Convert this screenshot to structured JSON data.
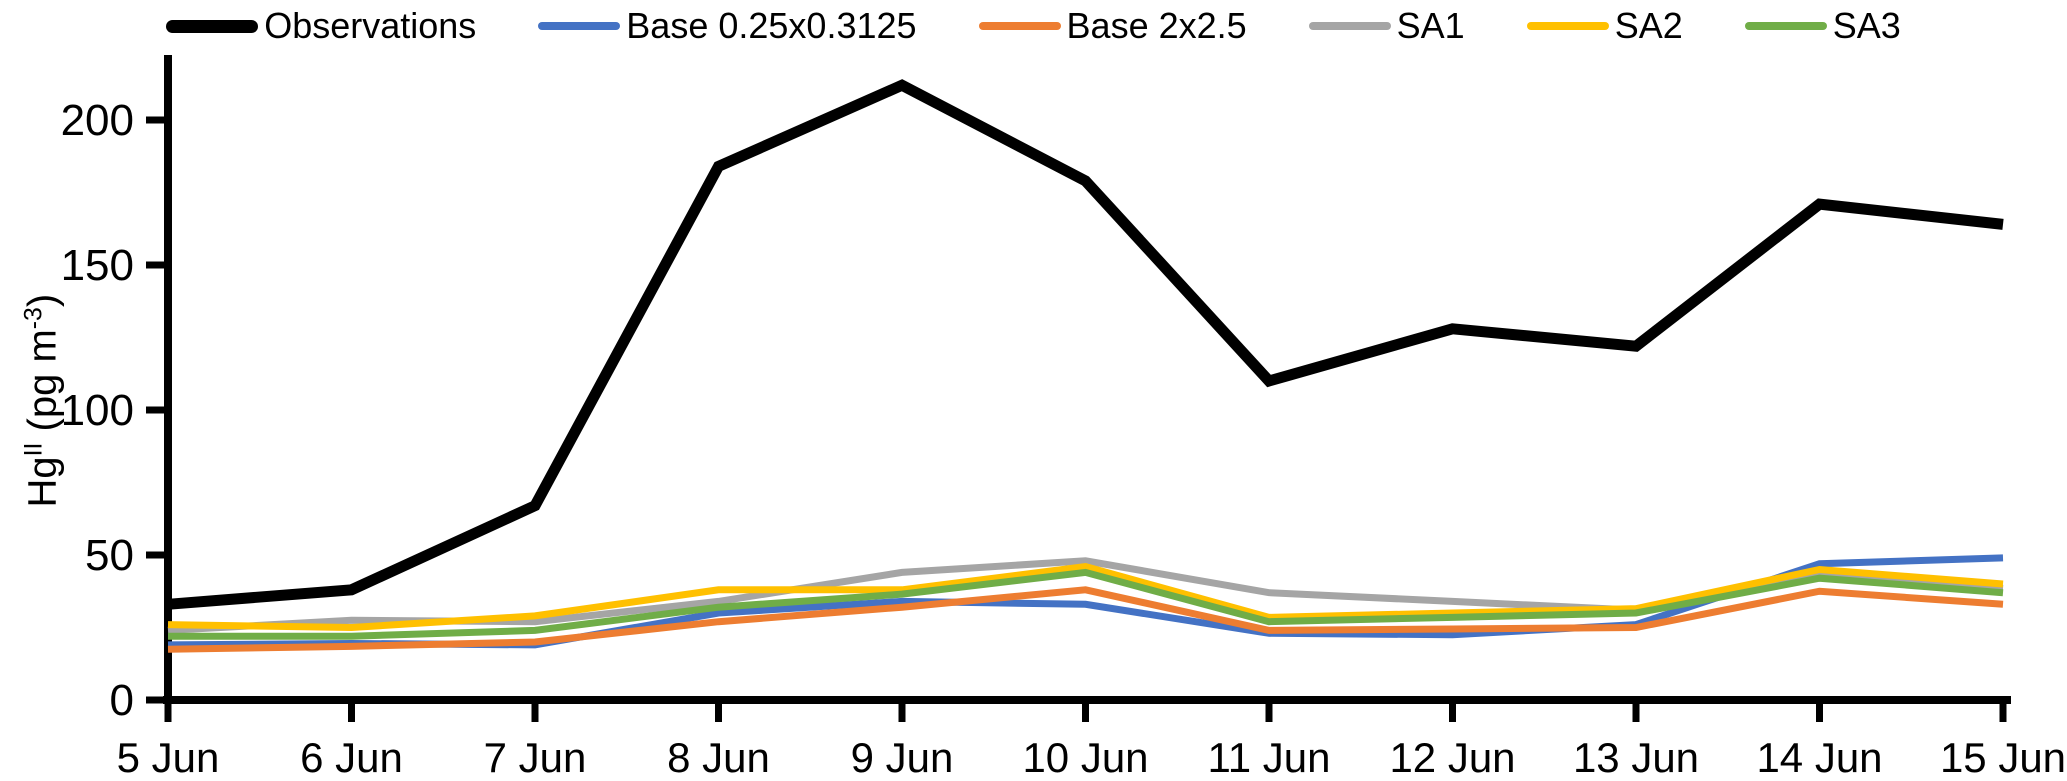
{
  "axis": {
    "ylabel": {
      "base": "Hg",
      "sup1": "II",
      "mid": " (pg m",
      "sup2": "-3",
      "tail": ")"
    }
  },
  "chart_data": {
    "type": "line",
    "title": "",
    "xlabel": "",
    "ylabel": "Hg^II (pg m^-3)",
    "ylim": [
      0,
      220
    ],
    "yticks": [
      0,
      50,
      100,
      150,
      200
    ],
    "grid": false,
    "legend_position": "top",
    "categories": [
      "5 Jun",
      "6 Jun",
      "7 Jun",
      "8 Jun",
      "9 Jun",
      "10 Jun",
      "11 Jun",
      "12 Jun",
      "13 Jun",
      "14 Jun",
      "15 Jun"
    ],
    "series": [
      {
        "name": "Observations",
        "color": "#000000",
        "width": 11,
        "values": [
          33,
          38,
          67,
          184,
          212,
          179,
          110,
          128,
          122,
          171,
          164
        ]
      },
      {
        "name": "Base 0.25x0.3125",
        "color": "#4472C4",
        "width": 7,
        "values": [
          19,
          19.5,
          19,
          30,
          34,
          33,
          23,
          22.5,
          26,
          47,
          49
        ]
      },
      {
        "name": "Base 2x2.5",
        "color": "#ED7D31",
        "width": 7,
        "values": [
          17.5,
          18.5,
          20,
          27,
          32,
          38,
          24,
          24.5,
          25,
          37.5,
          33
        ]
      },
      {
        "name": "SA1",
        "color": "#A5A5A5",
        "width": 7,
        "values": [
          24,
          27.5,
          27,
          34,
          44,
          48,
          37,
          34,
          31,
          44,
          38.5
        ]
      },
      {
        "name": "SA2",
        "color": "#FFC000",
        "width": 7,
        "values": [
          26,
          25,
          29,
          38,
          38,
          46,
          28.5,
          30,
          31.5,
          45,
          40
        ]
      },
      {
        "name": "SA3",
        "color": "#70AD47",
        "width": 7,
        "values": [
          22,
          22,
          24,
          32,
          36.5,
          44,
          27,
          28.5,
          30,
          42,
          37
        ]
      }
    ]
  }
}
